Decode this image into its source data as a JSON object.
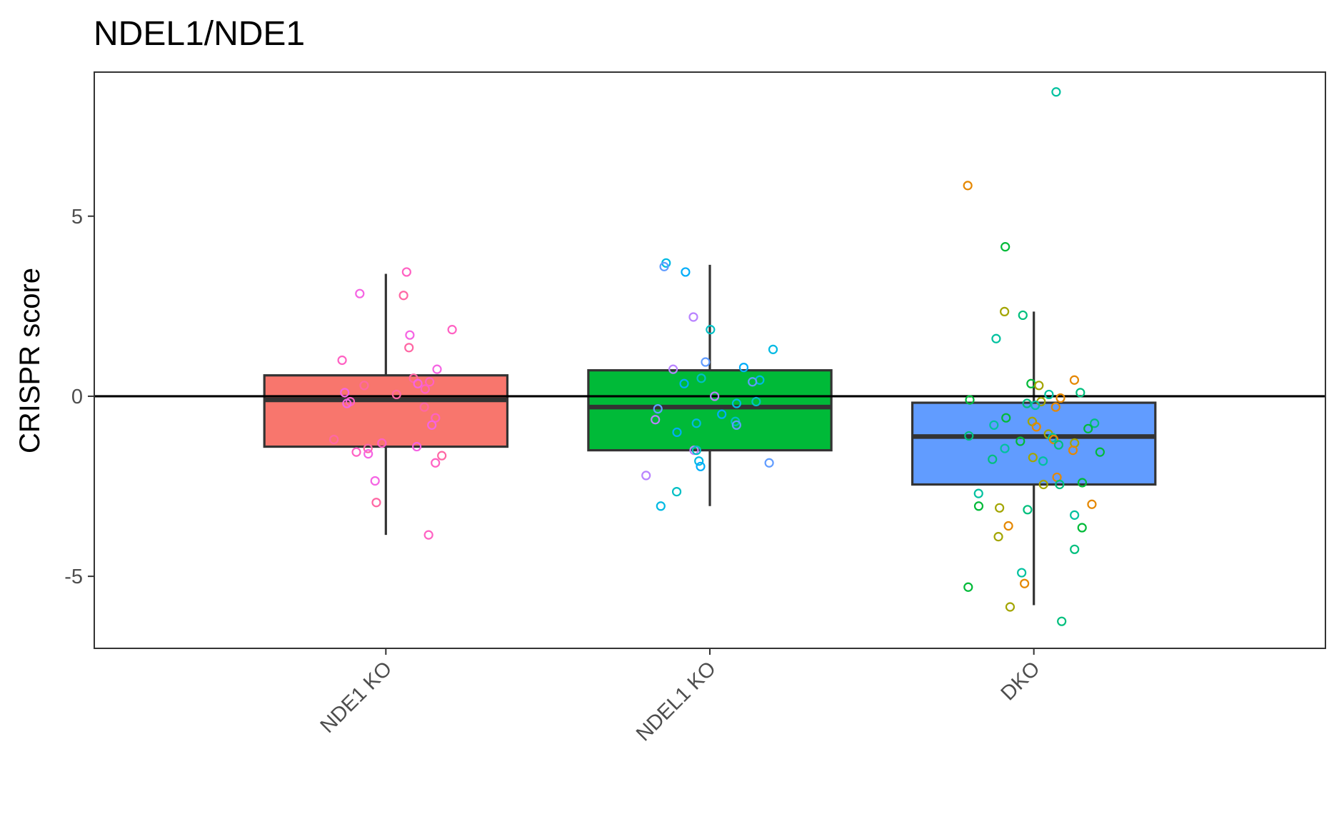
{
  "chart_data": {
    "type": "box",
    "title": "NDEL1/NDE1",
    "xlabel": "",
    "ylabel": "CRISPR score",
    "ylim": [
      -7,
      9
    ],
    "yticks": [
      -5,
      0,
      5
    ],
    "ytick_labels": [
      "-5",
      "0",
      "5"
    ],
    "reference_line": 0,
    "grid": false,
    "categories": [
      "NDE1 KO",
      "NDEL1 KO",
      "DKO"
    ],
    "boxes": [
      {
        "category": "NDE1 KO",
        "color": "#F8766D",
        "whisker_low": -3.85,
        "q1": -1.4,
        "median": -0.1,
        "q3": 0.58,
        "whisker_high": 3.4
      },
      {
        "category": "NDEL1 KO",
        "color": "#00BA38",
        "whisker_low": -3.05,
        "q1": -1.5,
        "median": -0.3,
        "q3": 0.72,
        "whisker_high": 3.65
      },
      {
        "category": "DKO",
        "color": "#619CFF",
        "whisker_low": -5.8,
        "q1": -2.45,
        "median": -1.12,
        "q3": -0.18,
        "whisker_high": 2.35
      }
    ],
    "points": [
      {
        "category": "NDE1 KO",
        "color": "#FF61C3",
        "values": [
          3.45,
          2.85,
          2.8,
          1.85,
          1.7,
          1.35,
          1.0,
          0.75,
          0.5,
          0.4,
          0.35,
          0.3,
          0.2,
          0.1,
          0.05,
          -0.15,
          -0.2,
          -0.3,
          -0.6,
          -0.8,
          -1.2,
          -1.3,
          -1.4,
          -1.45,
          -1.55,
          -1.6,
          -1.65,
          -1.85,
          -2.35,
          -2.95,
          -3.85
        ]
      },
      {
        "category": "NDEL1 KO",
        "color": "#00B9E3",
        "values": [
          3.7,
          3.6,
          3.45,
          2.2,
          1.85,
          1.3,
          0.95,
          0.8,
          0.75,
          0.5,
          0.45,
          0.4,
          0.35,
          0.0,
          -0.15,
          -0.2,
          -0.35,
          -0.5,
          -0.65,
          -0.7,
          -0.75,
          -0.8,
          -1.0,
          -1.5,
          -1.5,
          -1.8,
          -1.85,
          -1.95,
          -2.2,
          -2.65,
          -3.05
        ]
      },
      {
        "category": "DKO",
        "color": "#00C19F",
        "values": [
          8.45,
          5.85,
          4.15,
          2.35,
          2.25,
          1.6,
          0.45,
          0.35,
          0.3,
          0.1,
          0.05,
          -0.05,
          -0.1,
          -0.15,
          -0.2,
          -0.25,
          -0.3,
          -0.6,
          -0.7,
          -0.75,
          -0.8,
          -0.85,
          -0.9,
          -1.05,
          -1.1,
          -1.15,
          -1.2,
          -1.25,
          -1.3,
          -1.35,
          -1.45,
          -1.5,
          -1.55,
          -1.7,
          -1.75,
          -1.8,
          -2.25,
          -2.4,
          -2.45,
          -2.45,
          -2.7,
          -3.0,
          -3.05,
          -3.1,
          -3.15,
          -3.3,
          -3.6,
          -3.65,
          -3.9,
          -4.25,
          -4.9,
          -5.2,
          -5.3,
          -5.85,
          -6.25
        ]
      }
    ]
  }
}
